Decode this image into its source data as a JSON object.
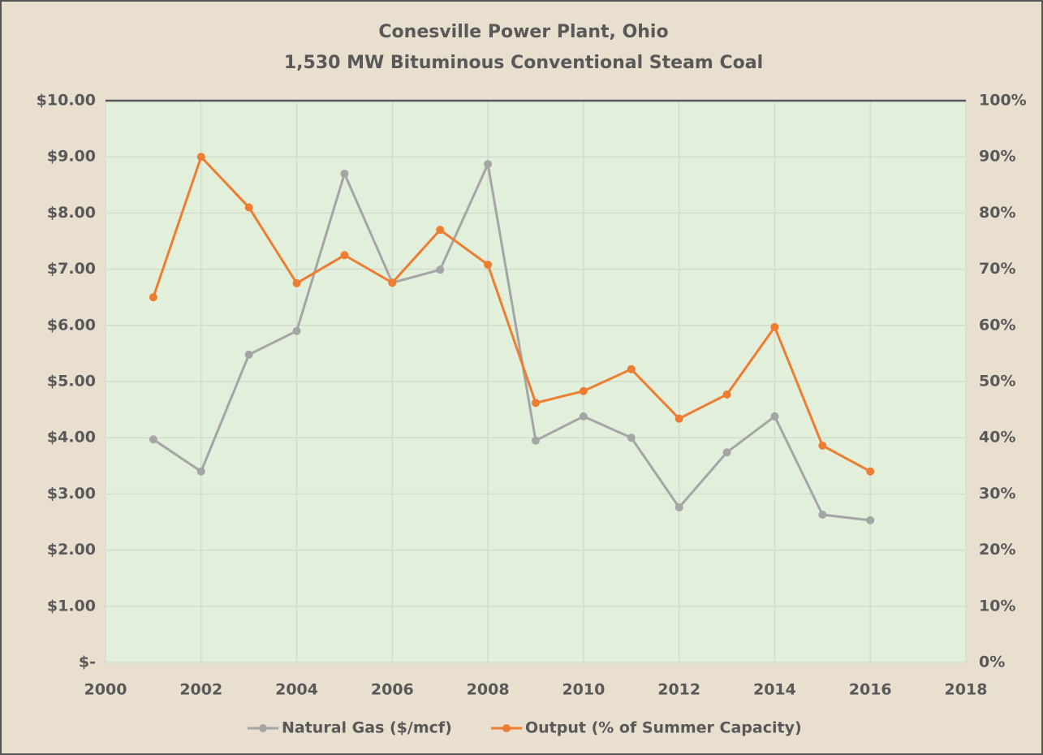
{
  "chart_data": {
    "type": "line",
    "title": "Conesville Power Plant, Ohio",
    "subtitle": "1,530 MW Bituminous Conventional Steam Coal",
    "x": [
      2001,
      2002,
      2003,
      2004,
      2005,
      2006,
      2007,
      2008,
      2009,
      2010,
      2011,
      2012,
      2013,
      2014,
      2015,
      2016
    ],
    "series": [
      {
        "name": "Natural Gas ($/mcf)",
        "color": "#a5a5a5",
        "axis": "y",
        "values": [
          3.97,
          3.4,
          5.48,
          5.9,
          8.7,
          6.76,
          6.99,
          8.87,
          3.95,
          4.38,
          4.0,
          2.76,
          3.74,
          4.38,
          2.63,
          2.53
        ]
      },
      {
        "name": "Output (% of Summer Capacity)",
        "color": "#ed7d31",
        "axis": "y2",
        "values": [
          65,
          90,
          81,
          67.5,
          72.5,
          67.6,
          77,
          70.8,
          46.2,
          48.3,
          52.2,
          43.4,
          47.7,
          59.7,
          38.6,
          34
        ]
      }
    ],
    "xlim": [
      2000,
      2018
    ],
    "xticks": [
      2000,
      2002,
      2004,
      2006,
      2008,
      2010,
      2012,
      2014,
      2016,
      2018
    ],
    "ylim": [
      0,
      10
    ],
    "yticks": [
      {
        "value": 0,
        "label": "$-"
      },
      {
        "value": 1,
        "label": "$1.00"
      },
      {
        "value": 2,
        "label": "$2.00"
      },
      {
        "value": 3,
        "label": "$3.00"
      },
      {
        "value": 4,
        "label": "$4.00"
      },
      {
        "value": 5,
        "label": "$5.00"
      },
      {
        "value": 6,
        "label": "$6.00"
      },
      {
        "value": 7,
        "label": "$7.00"
      },
      {
        "value": 8,
        "label": "$8.00"
      },
      {
        "value": 9,
        "label": "$9.00"
      },
      {
        "value": 10,
        "label": "$10.00"
      }
    ],
    "y2lim": [
      0,
      100
    ],
    "y2ticks": [
      {
        "value": 0,
        "label": "0%"
      },
      {
        "value": 10,
        "label": "10%"
      },
      {
        "value": 20,
        "label": "20%"
      },
      {
        "value": 30,
        "label": "30%"
      },
      {
        "value": 40,
        "label": "40%"
      },
      {
        "value": 50,
        "label": "50%"
      },
      {
        "value": 60,
        "label": "60%"
      },
      {
        "value": 70,
        "label": "70%"
      },
      {
        "value": 80,
        "label": "80%"
      },
      {
        "value": 90,
        "label": "90%"
      },
      {
        "value": 100,
        "label": "100%"
      }
    ],
    "grid": true,
    "legend": "bottom"
  }
}
